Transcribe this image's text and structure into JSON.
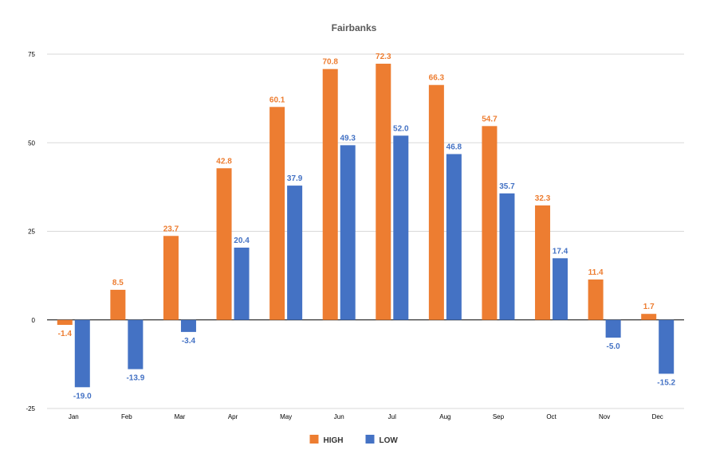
{
  "chart_data": {
    "type": "bar",
    "title": "Fairbanks",
    "categories": [
      "Jan",
      "Feb",
      "Mar",
      "Apr",
      "May",
      "Jun",
      "Jul",
      "Aug",
      "Sep",
      "Oct",
      "Nov",
      "Dec"
    ],
    "series": [
      {
        "name": "HIGH",
        "color": "#ED7D31",
        "values": [
          -1.4,
          8.5,
          23.7,
          42.8,
          60.1,
          70.8,
          72.3,
          66.3,
          54.7,
          32.3,
          11.4,
          1.7
        ]
      },
      {
        "name": "LOW",
        "color": "#4472C4",
        "values": [
          -19.0,
          -13.9,
          -3.4,
          20.4,
          37.9,
          49.3,
          52.0,
          46.8,
          35.7,
          17.4,
          -5.0,
          -15.2
        ]
      }
    ],
    "ylim": [
      -25,
      75
    ],
    "yticks": [
      -25,
      0,
      25,
      50,
      75
    ],
    "grid": true,
    "legend": "bottom",
    "label_decimals": 1
  }
}
